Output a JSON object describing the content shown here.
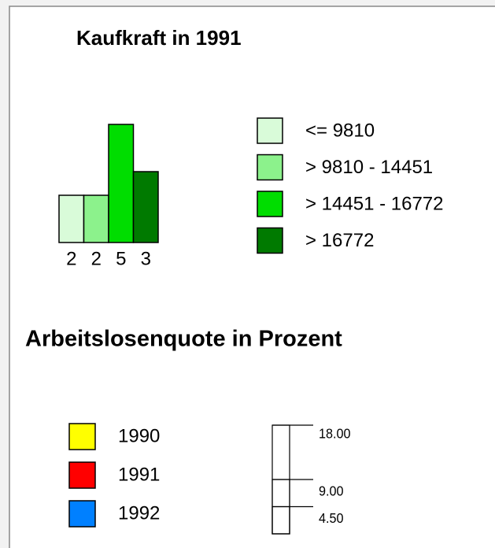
{
  "kaufkraft": {
    "title": "Kaufkraft in 1991",
    "classes": [
      {
        "label": "<= 9810",
        "color": "#d9fbd9",
        "count": 2
      },
      {
        "label": "> 9810 - 14451",
        "color": "#8cf28c",
        "count": 2
      },
      {
        "label": "> 14451 - 16772",
        "color": "#00dd00",
        "count": 5
      },
      {
        "label": "> 16772",
        "color": "#007a00",
        "count": 3
      }
    ]
  },
  "arbeitslosenquote": {
    "title": "Arbeitslosenquote in Prozent",
    "series": [
      {
        "name": "1990",
        "color": "#ffff00"
      },
      {
        "name": "1991",
        "color": "#ff0000"
      },
      {
        "name": "1992",
        "color": "#0080ff"
      }
    ],
    "scale": [
      {
        "value": 18,
        "label": "18.00"
      },
      {
        "value": 9,
        "label": "9.00"
      },
      {
        "value": 4.5,
        "label": "4.50"
      }
    ]
  }
}
